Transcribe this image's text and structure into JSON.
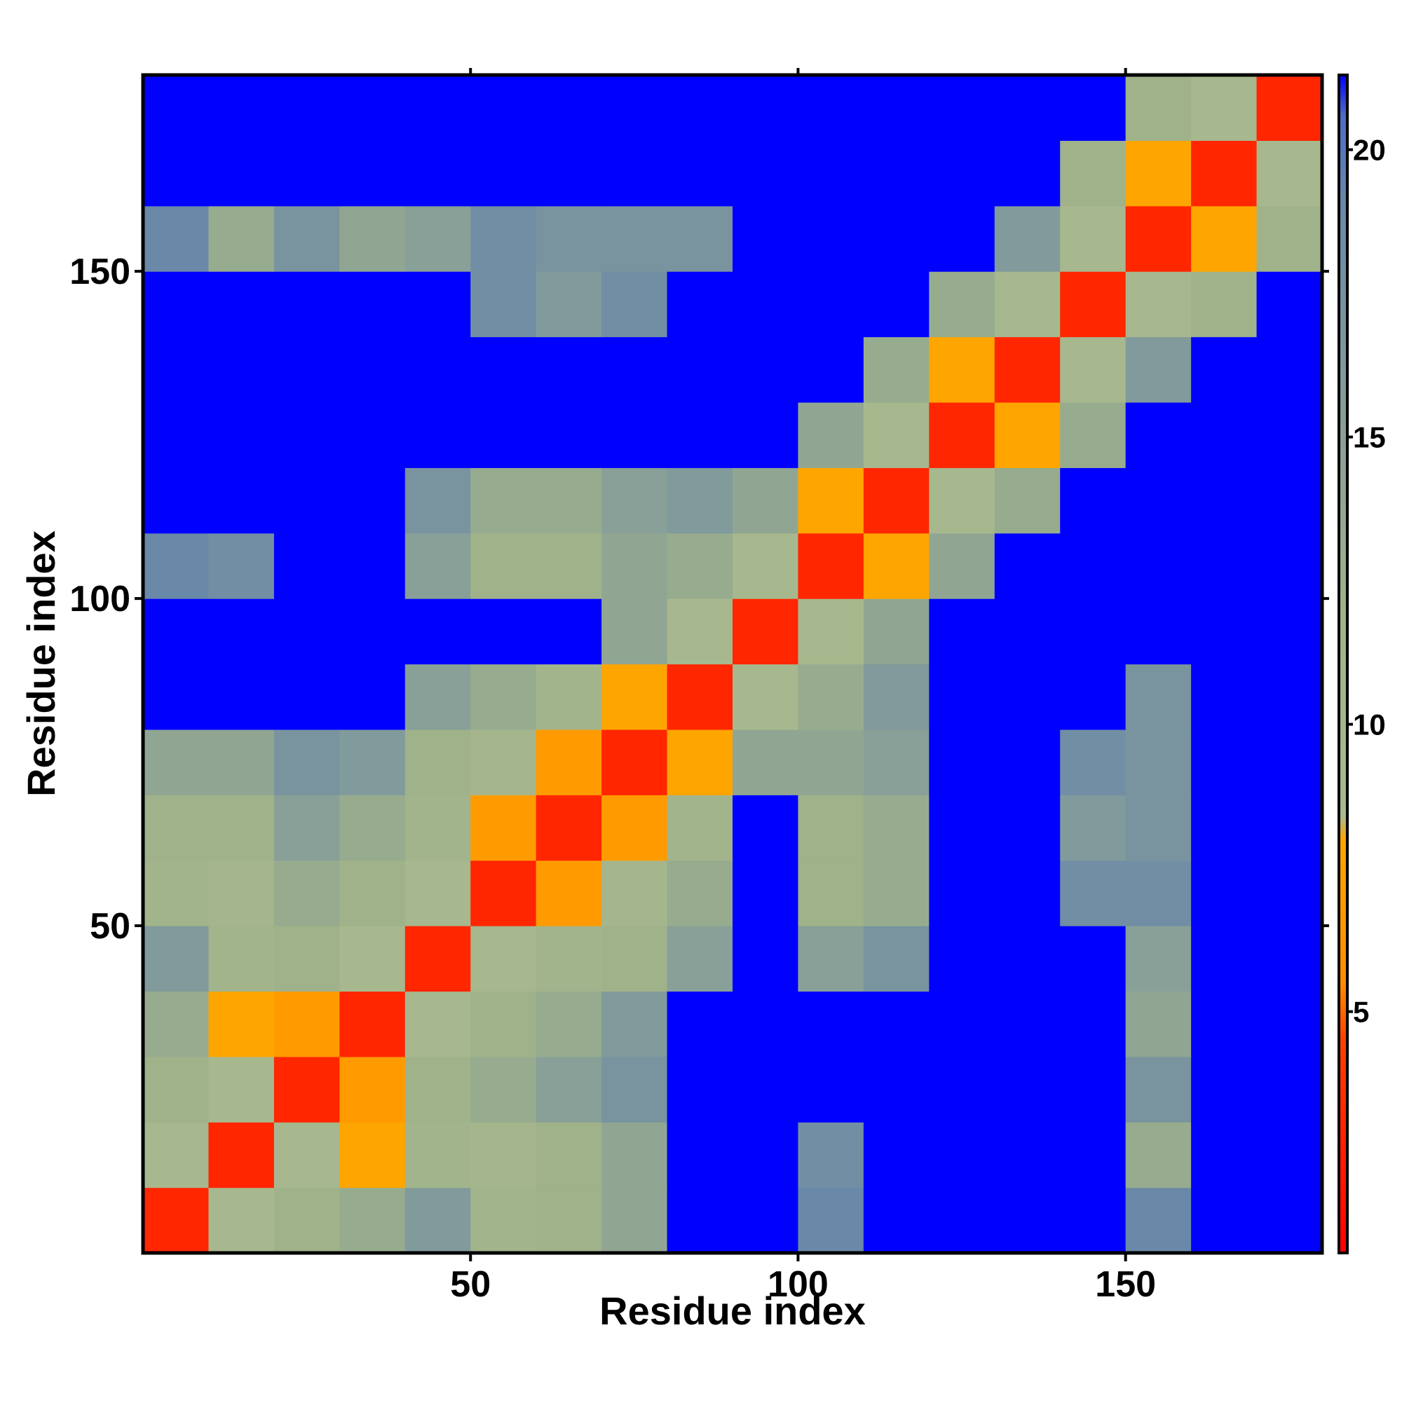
{
  "chart_data": {
    "type": "heatmap",
    "x_label": "Residue index",
    "y_label": "Residue index",
    "x_bins": [
      0,
      10,
      20,
      30,
      40,
      50,
      60,
      70,
      80,
      90,
      100,
      110,
      120,
      130,
      140,
      150,
      160,
      170,
      180
    ],
    "y_bins": [
      0,
      10,
      20,
      30,
      40,
      50,
      60,
      70,
      80,
      90,
      100,
      110,
      120,
      130,
      140,
      150,
      160,
      170,
      180
    ],
    "z": [
      [
        3,
        9,
        12,
        13,
        16,
        11,
        12,
        14,
        21.3,
        21.3,
        19,
        21.3,
        21.3,
        21.3,
        21.3,
        19,
        21.3,
        21.3
      ],
      [
        9,
        3,
        9,
        8,
        11,
        10,
        12,
        14,
        21.3,
        21.3,
        18,
        21.3,
        21.3,
        21.3,
        21.3,
        13,
        21.3,
        21.3
      ],
      [
        12,
        9,
        3,
        7,
        12,
        13,
        15,
        17,
        21.3,
        21.3,
        21.3,
        21.3,
        21.3,
        21.3,
        21.3,
        17,
        21.3,
        21.3
      ],
      [
        13,
        8,
        7,
        3,
        9,
        12,
        13,
        16,
        21.3,
        21.3,
        21.3,
        21.3,
        21.3,
        21.3,
        21.3,
        14,
        21.3,
        21.3
      ],
      [
        16,
        11,
        12,
        9,
        3,
        9,
        11,
        12,
        15,
        21.3,
        15,
        17,
        21.3,
        21.3,
        21.3,
        15,
        21.3,
        21.3
      ],
      [
        11,
        10,
        13,
        12,
        9,
        3,
        7,
        10,
        13,
        21.3,
        12,
        13,
        21.3,
        21.3,
        18,
        18,
        21.3,
        21.3
      ],
      [
        12,
        12,
        15,
        13,
        11,
        7,
        3,
        7,
        11,
        21.3,
        12,
        13,
        21.3,
        21.3,
        16,
        17,
        21.3,
        21.3
      ],
      [
        14,
        14,
        17,
        16,
        12,
        10,
        7,
        3,
        8,
        14,
        14,
        15,
        21.3,
        21.3,
        18,
        17,
        21.3,
        21.3
      ],
      [
        21.3,
        21.3,
        21.3,
        21.3,
        15,
        13,
        11,
        8,
        3,
        9,
        13,
        16,
        21.3,
        21.3,
        21.3,
        17,
        21.3,
        21.3
      ],
      [
        21.3,
        21.3,
        21.3,
        21.3,
        21.3,
        21.3,
        21.3,
        14,
        9,
        3,
        9,
        14,
        21.3,
        21.3,
        21.3,
        21.3,
        21.3,
        21.3
      ],
      [
        19,
        18,
        21.3,
        21.3,
        15,
        12,
        12,
        14,
        13,
        9,
        3,
        8,
        14,
        21.3,
        21.3,
        21.3,
        21.3,
        21.3
      ],
      [
        21.3,
        21.3,
        21.3,
        21.3,
        17,
        13,
        13,
        15,
        16,
        14,
        8,
        3,
        9,
        13,
        21.3,
        21.3,
        21.3,
        21.3
      ],
      [
        21.3,
        21.3,
        21.3,
        21.3,
        21.3,
        21.3,
        21.3,
        21.3,
        21.3,
        21.3,
        14,
        9,
        3,
        8,
        13,
        21.3,
        21.3,
        21.3
      ],
      [
        21.3,
        21.3,
        21.3,
        21.3,
        21.3,
        21.3,
        21.3,
        21.3,
        21.3,
        21.3,
        21.3,
        13,
        8,
        3,
        9,
        16,
        21.3,
        21.3
      ],
      [
        21.3,
        21.3,
        21.3,
        21.3,
        21.3,
        18,
        16,
        18,
        21.3,
        21.3,
        21.3,
        21.3,
        13,
        9,
        3,
        9,
        12,
        21.3
      ],
      [
        19,
        13,
        17,
        14,
        15,
        18,
        17,
        17,
        17,
        21.3,
        21.3,
        21.3,
        21.3,
        16,
        9,
        3,
        8,
        12
      ],
      [
        21.3,
        21.3,
        21.3,
        21.3,
        21.3,
        21.3,
        21.3,
        21.3,
        21.3,
        21.3,
        21.3,
        21.3,
        21.3,
        21.3,
        12,
        8,
        3,
        9
      ],
      [
        21.3,
        21.3,
        21.3,
        21.3,
        21.3,
        21.3,
        21.3,
        21.3,
        21.3,
        21.3,
        21.3,
        21.3,
        21.3,
        21.3,
        21.3,
        12,
        9,
        3
      ]
    ],
    "xlim": [
      0,
      180
    ],
    "ylim": [
      0,
      180
    ],
    "xticks": [
      50,
      100,
      150
    ],
    "yticks": [
      50,
      100,
      150
    ],
    "clim": [
      0.8,
      21.3
    ],
    "cticks": [
      5,
      10,
      15,
      20
    ],
    "colorscale": [
      [
        0.8,
        "#ff0000"
      ],
      [
        4.5,
        "#ff4000"
      ],
      [
        5.5,
        "#ff8c00"
      ],
      [
        8,
        "#ffa500"
      ],
      [
        8.4,
        "#a9b98f"
      ],
      [
        12,
        "#9fb28a"
      ],
      [
        19,
        "#6a88a8"
      ],
      [
        20.6,
        "#4a6ec4"
      ],
      [
        21.3,
        "#0000ff"
      ]
    ]
  }
}
